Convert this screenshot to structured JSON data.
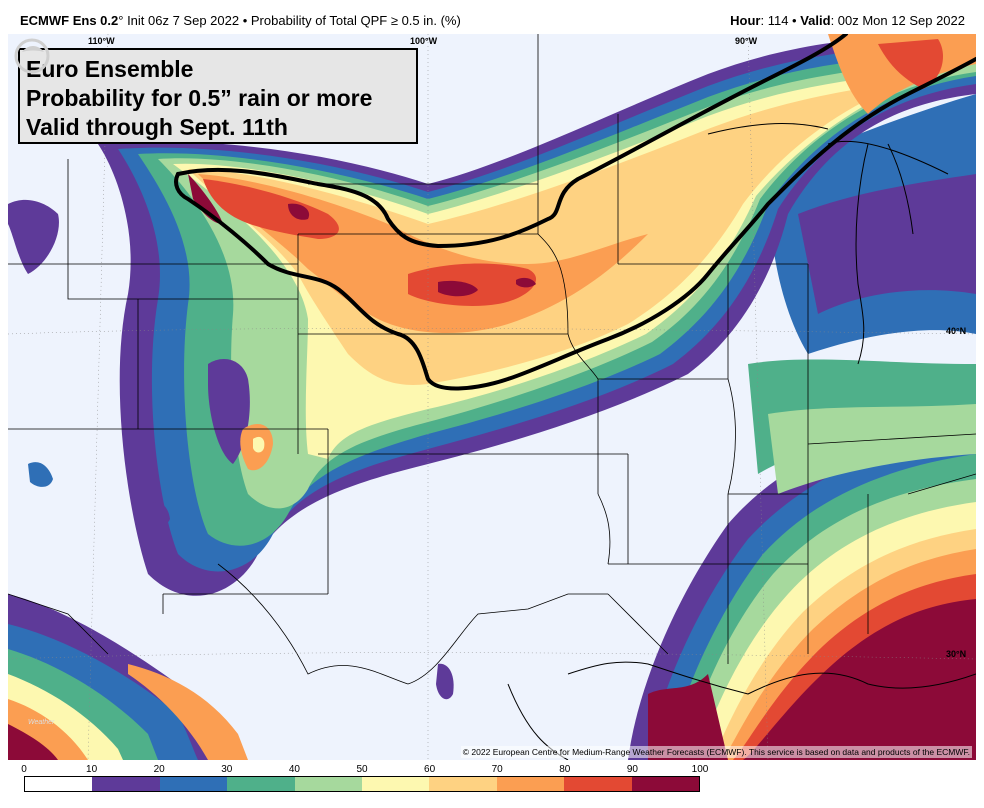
{
  "header": {
    "model": "ECMWF Ens 0.2",
    "degree": "°",
    "init": " Init 06z 7 Sep 2022",
    "bullet": " • ",
    "product": "Probability of Total QPF  ≥  0.5 in. (%)",
    "hour_label": "Hour",
    "hour_value": ": 114",
    "valid_label": "Valid",
    "valid_value": ": 00z Mon 12 Sep 2022"
  },
  "annotation": {
    "line1": "Euro Ensemble",
    "line2": "Probability for 0.5” rain or more",
    "line3": "Valid through Sept. 11th"
  },
  "map": {
    "lon_labels": [
      "110°W",
      "100°W",
      "90°W"
    ],
    "lat_labels": [
      "40°N",
      "30°N"
    ],
    "credit": "© 2022 European Centre for Medium-Range Weather Forecasts (ECMWF). This service is based on data and products of the ECMWF.",
    "watermark_text": "Weather"
  },
  "colorbar": {
    "ticks": [
      "0",
      "10",
      "20",
      "30",
      "40",
      "50",
      "60",
      "70",
      "80",
      "90",
      "100"
    ],
    "colors": [
      "#ffffff",
      "#5e3a99",
      "#2f6fb6",
      "#4fb08a",
      "#a6d99d",
      "#fdf8b0",
      "#fed282",
      "#fb9e52",
      "#e34933",
      "#8c0a38"
    ]
  }
}
